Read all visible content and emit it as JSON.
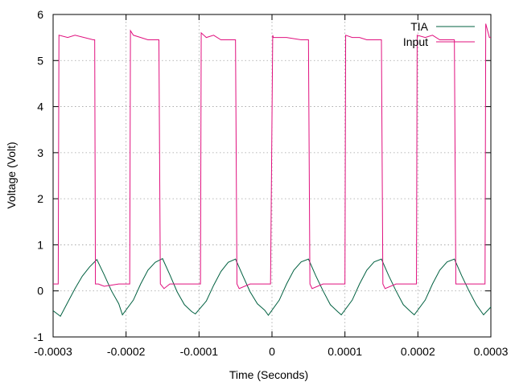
{
  "chart_data": {
    "type": "line",
    "title": "",
    "xlabel": "Time (Seconds)",
    "ylabel": "Voltage (Volt)",
    "xlim": [
      -0.0003,
      0.0003
    ],
    "ylim": [
      -1,
      6
    ],
    "grid": true,
    "legend_position": "top-right",
    "x_ticks": [
      -0.0003,
      -0.0002,
      -0.0001,
      0,
      0.0001,
      0.0002,
      0.0003
    ],
    "x_tick_labels": [
      "-0.0003",
      "-0.0002",
      "-0.0001",
      "0",
      "0.0001",
      "0.0002",
      "0.0003"
    ],
    "y_ticks": [
      -1,
      0,
      1,
      2,
      3,
      4,
      5,
      6
    ],
    "y_tick_labels": [
      "-1",
      "0",
      "1",
      "2",
      "3",
      "4",
      "5",
      "6"
    ],
    "series": [
      {
        "name": "TIA",
        "color": "#006040",
        "x": [
          -0.0003,
          -0.00029,
          -0.00028,
          -0.00027,
          -0.00026,
          -0.00025,
          -0.00024,
          -0.00023,
          -0.00022,
          -0.00021,
          -0.000205,
          -0.00019,
          -0.00018,
          -0.00017,
          -0.00016,
          -0.00015,
          -0.00014,
          -0.00013,
          -0.00012,
          -0.00011,
          -0.000105,
          -9e-05,
          -8e-05,
          -7e-05,
          -6e-05,
          -5e-05,
          -4e-05,
          -3e-05,
          -2e-05,
          -1e-05,
          -5e-06,
          1e-05,
          2e-05,
          3e-05,
          4e-05,
          5e-05,
          6e-05,
          7e-05,
          8e-05,
          9e-05,
          9.5e-05,
          0.00011,
          0.00012,
          0.00013,
          0.00014,
          0.00015,
          0.00016,
          0.00017,
          0.00018,
          0.00019,
          0.000195,
          0.00021,
          0.00022,
          0.00023,
          0.00024,
          0.00025,
          0.00026,
          0.00027,
          0.00028,
          0.00029,
          0.0003
        ],
        "y": [
          -0.43,
          -0.55,
          -0.25,
          0.05,
          0.32,
          0.52,
          0.68,
          0.35,
          0.0,
          -0.28,
          -0.52,
          -0.2,
          0.15,
          0.45,
          0.62,
          0.7,
          0.35,
          -0.02,
          -0.3,
          -0.45,
          -0.5,
          -0.22,
          0.12,
          0.42,
          0.62,
          0.69,
          0.33,
          -0.02,
          -0.28,
          -0.42,
          -0.53,
          -0.2,
          0.15,
          0.45,
          0.63,
          0.69,
          0.33,
          0.0,
          -0.3,
          -0.45,
          -0.52,
          -0.2,
          0.15,
          0.45,
          0.63,
          0.69,
          0.33,
          0.0,
          -0.3,
          -0.45,
          -0.52,
          -0.2,
          0.15,
          0.45,
          0.63,
          0.69,
          0.33,
          0.0,
          -0.3,
          -0.52,
          -0.35
        ]
      },
      {
        "name": "Input",
        "color": "#e0107e",
        "x": [
          -0.0003,
          -0.000293,
          -0.000292,
          -0.00028,
          -0.00027,
          -0.000245,
          -0.000243,
          -0.000242,
          -0.000238,
          -0.00023,
          -0.00021,
          -0.000198,
          -0.000195,
          -0.000194,
          -0.00019,
          -0.00018,
          -0.00017,
          -0.000155,
          -0.000153,
          -0.000148,
          -0.00014,
          -0.00012,
          -0.000105,
          -9.8e-05,
          -9.7e-05,
          -9e-05,
          -8e-05,
          -7e-05,
          -5e-05,
          -4.8e-05,
          -4.5e-05,
          -3e-05,
          -1e-05,
          -2e-06,
          1e-06,
          2e-06,
          1e-05,
          2e-05,
          4e-05,
          5e-05,
          5.2e-05,
          5.5e-05,
          7e-05,
          9e-05,
          9.8e-05,
          0.0001,
          0.000101,
          0.00011,
          0.00012,
          0.00013,
          0.00015,
          0.000152,
          0.000155,
          0.00017,
          0.00019,
          0.000195,
          0.000198,
          0.000199,
          0.00021,
          0.00022,
          0.00023,
          0.00025,
          0.000252,
          0.000255,
          0.00027,
          0.000285,
          0.000292,
          0.000293,
          0.000298,
          0.0003
        ],
        "y": [
          0.15,
          0.15,
          5.55,
          5.5,
          5.55,
          5.45,
          5.45,
          0.15,
          0.15,
          0.1,
          0.15,
          0.15,
          0.15,
          5.65,
          5.55,
          5.5,
          5.45,
          5.45,
          0.15,
          0.05,
          0.15,
          0.15,
          0.15,
          0.15,
          5.6,
          5.5,
          5.55,
          5.45,
          5.45,
          0.15,
          0.05,
          0.15,
          0.15,
          0.15,
          5.55,
          5.5,
          5.5,
          5.5,
          5.45,
          5.45,
          0.15,
          0.05,
          0.15,
          0.15,
          0.15,
          0.15,
          5.55,
          5.5,
          5.5,
          5.45,
          5.45,
          0.15,
          0.05,
          0.15,
          0.15,
          0.15,
          0.15,
          5.55,
          5.5,
          5.55,
          5.45,
          5.45,
          0.15,
          0.15,
          0.15,
          0.15,
          0.15,
          5.8,
          5.5,
          5.5
        ]
      }
    ]
  }
}
